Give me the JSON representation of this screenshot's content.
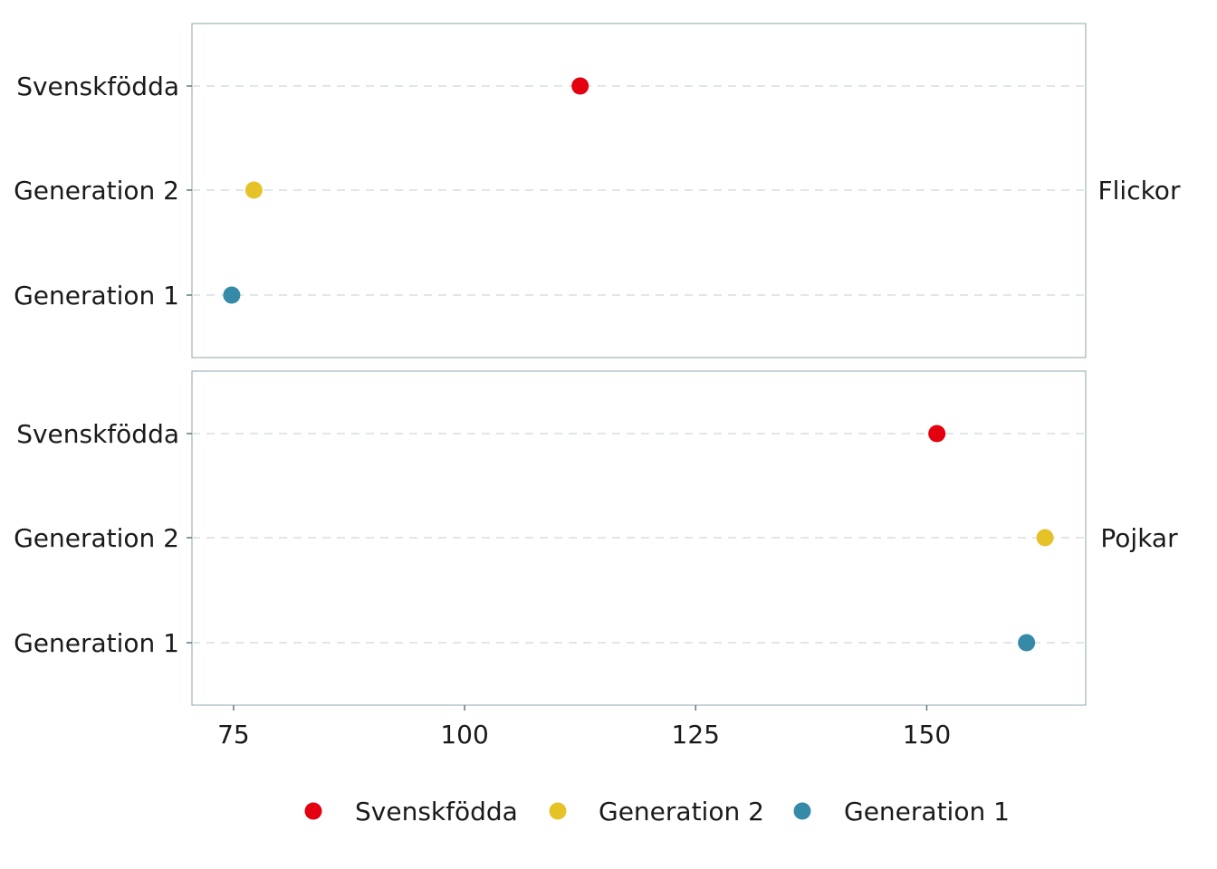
{
  "chart_data": {
    "type": "scatter",
    "x_ticks": [
      75,
      100,
      125,
      150
    ],
    "xlim": [
      70.5,
      167.2
    ],
    "categories": [
      "Generation 1",
      "Generation 2",
      "Svenskfödda"
    ],
    "facets": [
      {
        "label": "Flickor",
        "points": [
          {
            "series": "Svenskfödda",
            "x": 112.5
          },
          {
            "series": "Generation 2",
            "x": 77.2
          },
          {
            "series": "Generation 1",
            "x": 74.8
          }
        ]
      },
      {
        "label": "Pojkar",
        "points": [
          {
            "series": "Svenskfödda",
            "x": 151.1
          },
          {
            "series": "Generation 2",
            "x": 162.8
          },
          {
            "series": "Generation 1",
            "x": 160.8
          }
        ]
      }
    ],
    "series": [
      {
        "name": "Svenskfödda",
        "color": "#e3000f"
      },
      {
        "name": "Generation 2",
        "color": "#e6c229"
      },
      {
        "name": "Generation 1",
        "color": "#348aa7"
      }
    ],
    "grid": "horizontal dashed",
    "legend_position": "bottom"
  }
}
